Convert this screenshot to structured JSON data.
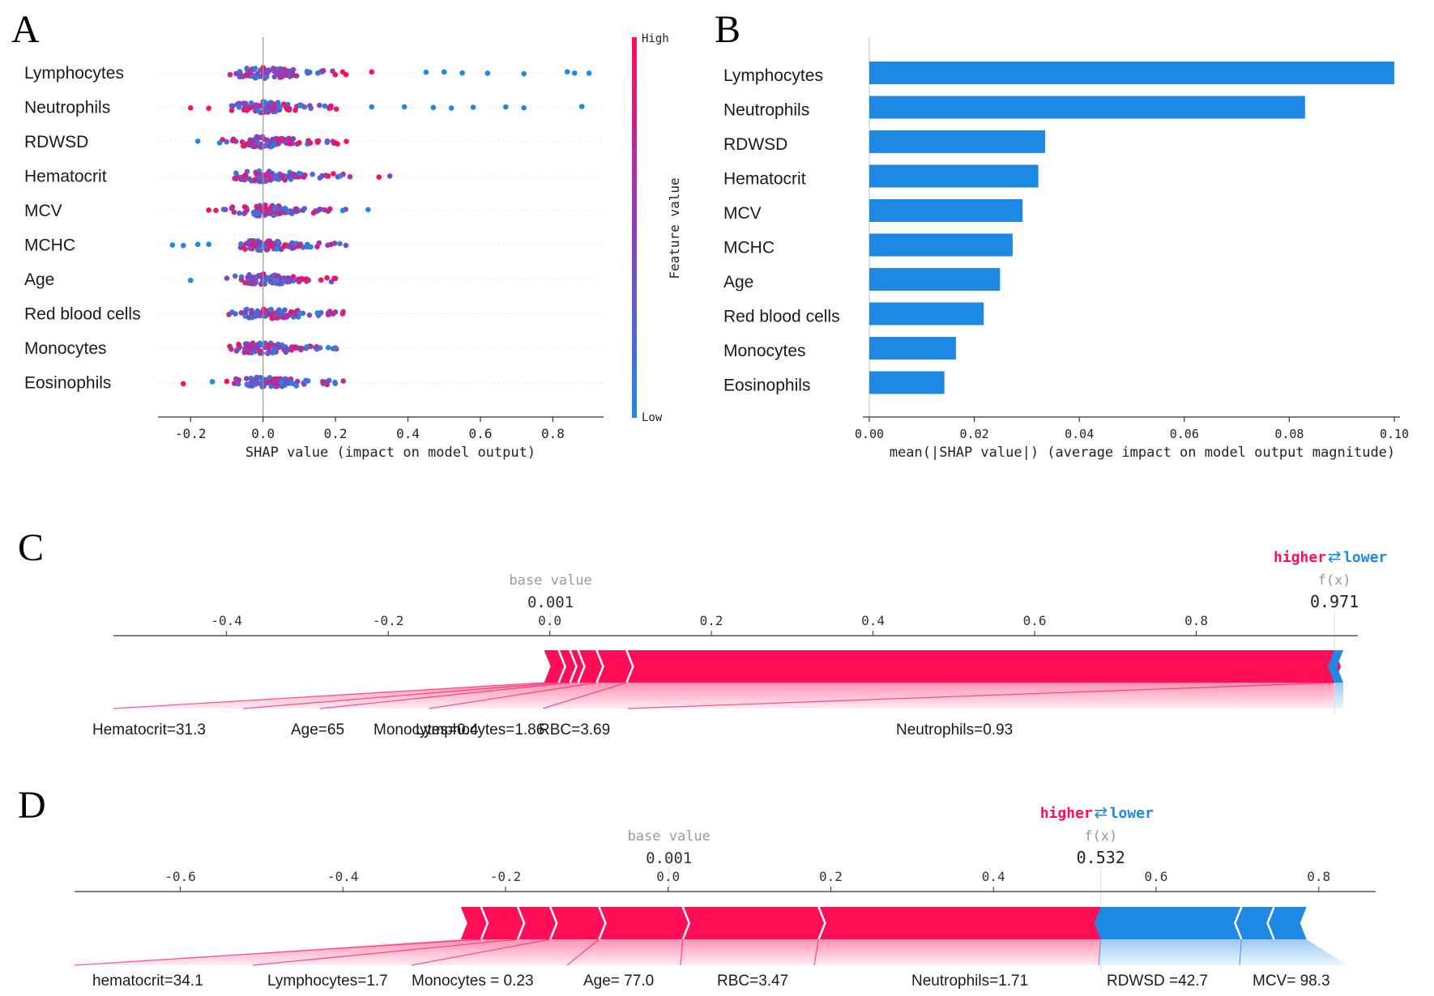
{
  "colors": {
    "high": "#ff0d57",
    "low": "#1e88e5",
    "mid": "#8a3fbf",
    "bar": "#1e88e5",
    "axis": "#333333",
    "text": "#1a1a1a",
    "grey": "#888888"
  },
  "chart_data": [
    {
      "panel": "A",
      "type": "scatter",
      "subtype": "shap-beeswarm",
      "features": [
        "Lymphocytes",
        "Neutrophils",
        "RDWSD",
        "Hematocrit",
        "MCV",
        "MCHC",
        "Age",
        "Red blood cells",
        "Monocytes",
        "Eosinophils"
      ],
      "xlim": [
        -0.29,
        0.94
      ],
      "xticks": [
        -0.2,
        0.0,
        0.2,
        0.4,
        0.6,
        0.8
      ],
      "xtick_labels": [
        "-0.2",
        "0.0",
        "0.2",
        "0.4",
        "0.6",
        "0.8"
      ],
      "xlabel": "SHAP value (impact on model output)",
      "colorbar": {
        "label": "Feature value",
        "high": "High",
        "low": "Low"
      },
      "extreme_points": [
        [
          [
            0.9,
            0
          ],
          [
            0.84,
            0
          ],
          [
            0.86,
            0
          ],
          [
            0.72,
            0
          ],
          [
            0.62,
            0
          ],
          [
            0.55,
            0
          ],
          [
            0.5,
            0
          ],
          [
            0.45,
            0
          ],
          [
            0.3,
            1
          ],
          [
            0.22,
            1
          ]
        ],
        [
          [
            0.88,
            0
          ],
          [
            0.72,
            0
          ],
          [
            0.67,
            0
          ],
          [
            0.58,
            0
          ],
          [
            0.52,
            0
          ],
          [
            0.47,
            0
          ],
          [
            0.39,
            0
          ],
          [
            0.3,
            0
          ],
          [
            -0.2,
            1
          ],
          [
            -0.15,
            1
          ]
        ],
        [
          [
            -0.18,
            0
          ],
          [
            -0.12,
            0
          ],
          [
            0.1,
            1
          ],
          [
            0.2,
            1
          ],
          [
            0.23,
            1
          ],
          [
            0.15,
            1
          ]
        ],
        [
          [
            0.35,
            0.5
          ],
          [
            0.32,
            1
          ],
          [
            0.24,
            0.6
          ],
          [
            0.18,
            1
          ],
          [
            -0.05,
            1
          ]
        ],
        [
          [
            0.29,
            0
          ],
          [
            0.22,
            0
          ],
          [
            0.15,
            0.5
          ],
          [
            -0.15,
            1
          ],
          [
            -0.13,
            1
          ]
        ],
        [
          [
            -0.25,
            0
          ],
          [
            -0.22,
            0
          ],
          [
            -0.18,
            0
          ],
          [
            -0.15,
            0
          ],
          [
            0.1,
            1
          ],
          [
            0.06,
            1
          ]
        ],
        [
          [
            -0.2,
            0
          ],
          [
            -0.1,
            0.5
          ],
          [
            0.2,
            1
          ],
          [
            0.16,
            1
          ],
          [
            0.12,
            1
          ]
        ],
        [
          [
            0.22,
            1
          ],
          [
            0.18,
            0.5
          ],
          [
            0.15,
            0
          ],
          [
            0.1,
            0
          ],
          [
            -0.06,
            0.6
          ]
        ],
        [
          [
            0.2,
            0
          ],
          [
            0.18,
            0
          ],
          [
            0.12,
            0
          ],
          [
            -0.05,
            0.5
          ]
        ],
        [
          [
            -0.22,
            1
          ],
          [
            -0.14,
            0
          ],
          [
            -0.1,
            1
          ],
          [
            0.08,
            0
          ],
          [
            0.05,
            0
          ]
        ]
      ]
    },
    {
      "panel": "B",
      "type": "bar",
      "orientation": "horizontal",
      "categories": [
        "Lymphocytes",
        "Neutrophils",
        "RDWSD",
        "Hematocrit",
        "MCV",
        "MCHC",
        "Age",
        "Red blood cells",
        "Monocytes",
        "Eosinophils"
      ],
      "values": [
        0.1,
        0.083,
        0.0335,
        0.0322,
        0.0292,
        0.0273,
        0.0249,
        0.0218,
        0.0165,
        0.0143
      ],
      "xlim": [
        0.0,
        0.1
      ],
      "xticks": [
        0.0,
        0.02,
        0.04,
        0.06,
        0.08,
        0.1
      ],
      "xtick_labels": [
        "0.00",
        "0.02",
        "0.04",
        "0.06",
        "0.08",
        "0.10"
      ],
      "xlabel": "mean(|SHAP value|) (average impact on model output magnitude)"
    },
    {
      "panel": "C",
      "type": "bar",
      "subtype": "shap-force",
      "base_value": 0.001,
      "base_label": "base value",
      "base_value_label": "0.001",
      "output_value": 0.971,
      "output_label": "f(x)",
      "output_value_label": "0.971",
      "legend_higher": "higher",
      "legend_lower": "lower",
      "xlim": [
        -0.54,
        1.0
      ],
      "xticks": [
        -0.4,
        -0.2,
        0.0,
        0.2,
        0.4,
        0.6,
        0.8
      ],
      "xtick_labels": [
        "-0.4",
        "-0.2",
        "0.0",
        "0.2",
        "0.4",
        "0.6",
        "0.8"
      ],
      "positive_boundaries": [
        -0.007,
        0.011,
        0.025,
        0.035,
        0.058,
        0.095,
        0.971
      ],
      "negative_boundaries": [
        0.971,
        0.982
      ],
      "labels": [
        {
          "text": "Hematocrit=31.3",
          "feature_x": -0.007
        },
        {
          "text": "Age=65",
          "feature_x": 0.011
        },
        {
          "text": "Monocytes=0.4",
          "feature_x": 0.025
        },
        {
          "text": "Lymphocytes=1.86",
          "feature_x": 0.058
        },
        {
          "text": "RBC=3.69",
          "feature_x": 0.095
        },
        {
          "text": "Neutrophils=0.93",
          "feature_x": 0.971
        }
      ]
    },
    {
      "panel": "D",
      "type": "bar",
      "subtype": "shap-force",
      "base_value": 0.001,
      "base_label": "base value",
      "base_value_label": "0.001",
      "output_value": 0.532,
      "output_label": "f(x)",
      "output_value_label": "0.532",
      "legend_higher": "higher",
      "legend_lower": "lower",
      "xlim": [
        -0.73,
        0.87
      ],
      "xticks": [
        -0.6,
        -0.4,
        -0.2,
        0.0,
        0.2,
        0.4,
        0.6,
        0.8
      ],
      "xtick_labels": [
        "-0.6",
        "-0.4",
        "-0.2",
        "0.0",
        "0.2",
        "0.4",
        "0.6",
        "0.8"
      ],
      "positive_boundaries": [
        -0.255,
        -0.23,
        -0.185,
        -0.145,
        -0.085,
        0.018,
        0.185,
        0.532
      ],
      "negative_boundaries": [
        0.532,
        0.705,
        0.745,
        0.785
      ],
      "labels": [
        {
          "text": "hematocrit=34.1",
          "feature_x": -0.23
        },
        {
          "text": "Lymphocytes=1.7",
          "feature_x": -0.185
        },
        {
          "text": "Monocytes = 0.23",
          "feature_x": -0.145
        },
        {
          "text": "Age= 77.0",
          "feature_x": -0.085
        },
        {
          "text": "RBC=3.47",
          "feature_x": 0.018
        },
        {
          "text": "Neutrophils=1.71",
          "feature_x": 0.185
        },
        {
          "text": "RDWSD =42.7",
          "feature_x": 0.532
        },
        {
          "text": "MCV= 98.3",
          "feature_x": 0.705
        }
      ]
    }
  ],
  "panel_letters": [
    "A",
    "B",
    "C",
    "D"
  ]
}
